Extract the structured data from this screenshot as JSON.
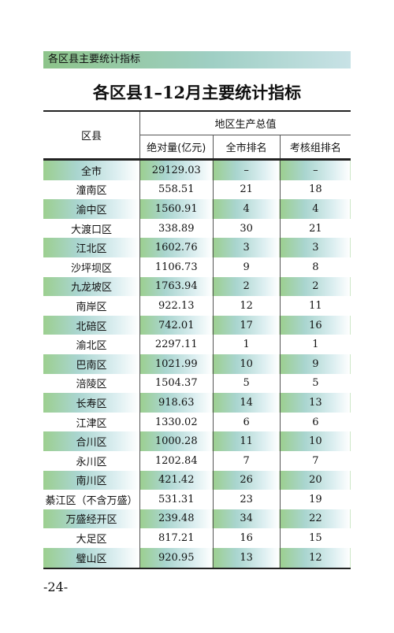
{
  "header": {
    "title": "各区县主要统计指标"
  },
  "title": "各区县1–12月主要统计指标",
  "table": {
    "region_header": "区县",
    "group_header": "地区生产总值",
    "columns": [
      "绝对量(亿元)",
      "全市排名",
      "考核组排名"
    ],
    "rows": [
      [
        "全市",
        "29129.03",
        "–",
        "–"
      ],
      [
        "潼南区",
        "558.51",
        "21",
        "18"
      ],
      [
        "渝中区",
        "1560.91",
        "4",
        "4"
      ],
      [
        "大渡口区",
        "338.89",
        "30",
        "21"
      ],
      [
        "江北区",
        "1602.76",
        "3",
        "3"
      ],
      [
        "沙坪坝区",
        "1106.73",
        "9",
        "8"
      ],
      [
        "九龙坡区",
        "1763.94",
        "2",
        "2"
      ],
      [
        "南岸区",
        "922.13",
        "12",
        "11"
      ],
      [
        "北碚区",
        "742.01",
        "17",
        "16"
      ],
      [
        "渝北区",
        "2297.11",
        "1",
        "1"
      ],
      [
        "巴南区",
        "1021.99",
        "10",
        "9"
      ],
      [
        "涪陵区",
        "1504.37",
        "5",
        "5"
      ],
      [
        "长寿区",
        "918.63",
        "14",
        "13"
      ],
      [
        "江津区",
        "1330.02",
        "6",
        "6"
      ],
      [
        "合川区",
        "1000.28",
        "11",
        "10"
      ],
      [
        "永川区",
        "1202.84",
        "7",
        "7"
      ],
      [
        "南川区",
        "421.42",
        "26",
        "20"
      ],
      [
        "綦江区（不含万盛）",
        "531.31",
        "23",
        "19"
      ],
      [
        "万盛经开区",
        "239.48",
        "34",
        "22"
      ],
      [
        "大足区",
        "817.21",
        "16",
        "15"
      ],
      [
        "璧山区",
        "920.95",
        "13",
        "12"
      ]
    ]
  },
  "page_number": "-24-"
}
